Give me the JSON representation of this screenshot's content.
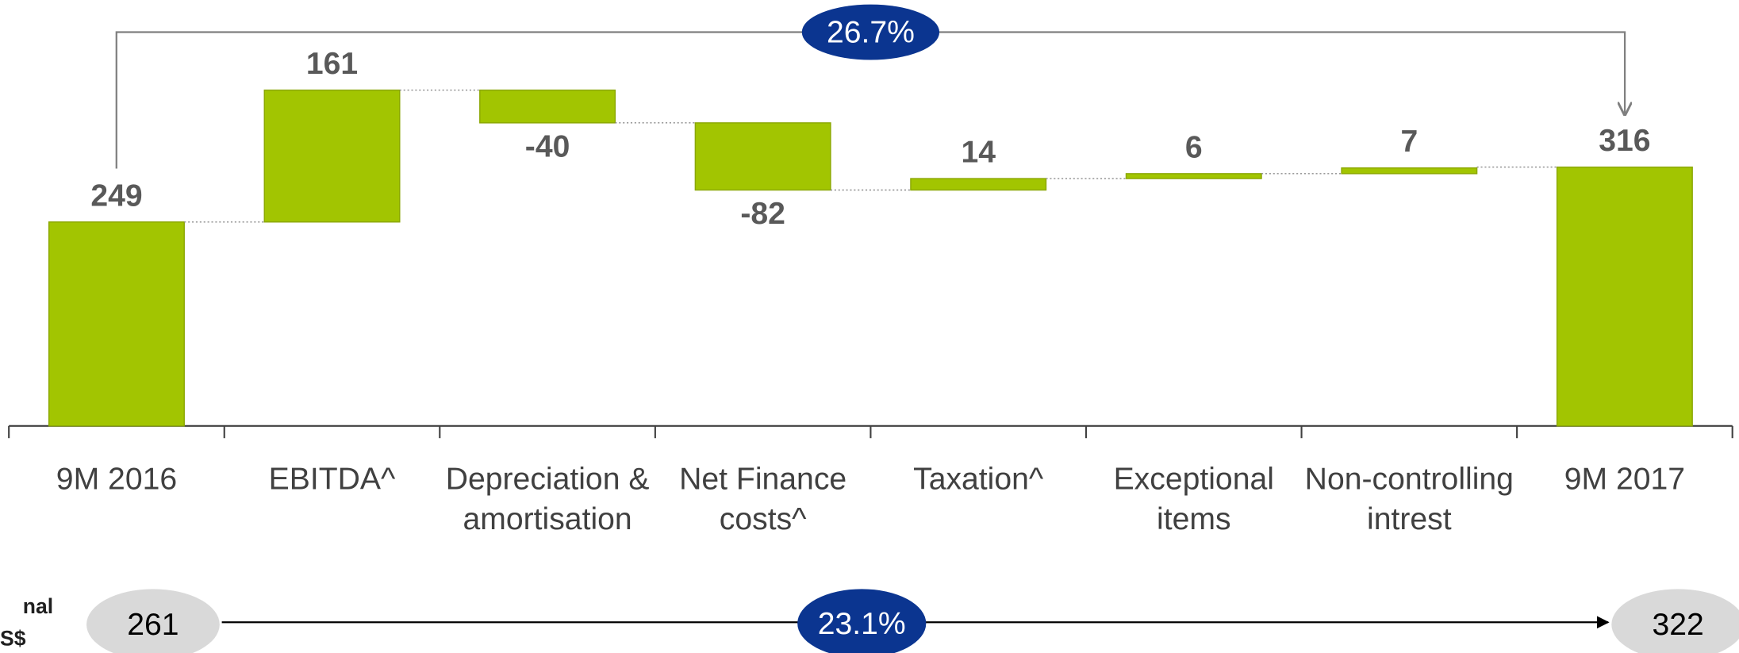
{
  "chart_data": {
    "type": "waterfall",
    "categories": [
      "9M 2016",
      "EBITDA^",
      "Depreciation & amortisation",
      "Net Finance costs^",
      "Taxation^",
      "Exceptional items",
      "Non-controlling intrest",
      "9M 2017"
    ],
    "values": [
      249,
      161,
      -40,
      -82,
      14,
      6,
      7,
      316
    ],
    "color": "#a2c501",
    "ylim": [
      0,
      520
    ],
    "annotations": {
      "top_growth": "26.7%",
      "bottom_growth": "23.1%",
      "bottom_start": 261,
      "bottom_end": 322,
      "bottom_label": [
        "nal",
        "S$ M)"
      ]
    }
  }
}
